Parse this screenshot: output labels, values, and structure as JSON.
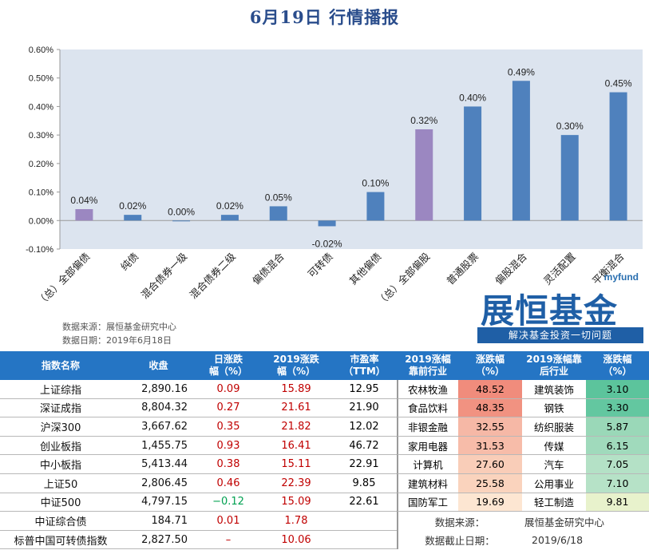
{
  "title": "6月19日  行情播报",
  "chart_data": {
    "type": "bar",
    "categories": [
      "（总）全部偏债",
      "纯债",
      "混合债券一级",
      "混合债券二级",
      "偏债混合",
      "可转债",
      "其他偏债",
      "（总）全部偏股",
      "普通股票",
      "偏股混合",
      "灵活配置",
      "平衡混合"
    ],
    "values": [
      0.04,
      0.02,
      0.0,
      0.02,
      0.05,
      -0.02,
      0.1,
      0.32,
      0.4,
      0.49,
      0.3,
      0.45
    ],
    "value_labels": [
      "0.04%",
      "0.02%",
      "0.00%",
      "0.02%",
      "0.05%",
      "-0.02%",
      "0.10%",
      "0.32%",
      "0.40%",
      "0.49%",
      "0.30%",
      "0.45%"
    ],
    "highlight": [
      true,
      false,
      false,
      false,
      false,
      false,
      false,
      true,
      false,
      false,
      false,
      false
    ],
    "yticks": [
      -0.1,
      0.0,
      0.1,
      0.2,
      0.3,
      0.4,
      0.5,
      0.6
    ],
    "ytick_labels": [
      "-0.10%",
      "0.00%",
      "0.10%",
      "0.20%",
      "0.30%",
      "0.40%",
      "0.50%",
      "0.60%"
    ],
    "ylim": [
      -0.1,
      0.6
    ],
    "colors": {
      "bar": "#4f81bd",
      "highlight": "#9b87c1",
      "plot_bg": "#dce4ef",
      "axis": "#999999"
    },
    "grid": false
  },
  "source": {
    "line1": "数据来源：展恒基金研究中心",
    "line2": "数据日期：2019年6月18日"
  },
  "logo": {
    "my": "myfund",
    "name": "展恒基金",
    "tagline": "解决基金投资一切问题"
  },
  "index_table": {
    "headers": [
      "指数名称",
      "收盘",
      "日涨跌\n幅（%）",
      "2019涨跌\n幅（%）",
      "市盈率\n（TTM）"
    ],
    "rows": [
      {
        "name": "上证综指",
        "close": "2,890.16",
        "day": "0.09",
        "ytd": "15.89",
        "pe": "12.95"
      },
      {
        "name": "深证成指",
        "close": "8,804.32",
        "day": "0.27",
        "ytd": "21.61",
        "pe": "21.90"
      },
      {
        "name": "沪深300",
        "close": "3,667.62",
        "day": "0.35",
        "ytd": "21.82",
        "pe": "12.02"
      },
      {
        "name": "创业板指",
        "close": "1,455.75",
        "day": "0.93",
        "ytd": "16.41",
        "pe": "46.72"
      },
      {
        "name": "中小板指",
        "close": "5,413.44",
        "day": "0.38",
        "ytd": "15.11",
        "pe": "22.91"
      },
      {
        "name": "上证50",
        "close": "2,806.45",
        "day": "0.46",
        "ytd": "22.39",
        "pe": "9.85"
      },
      {
        "name": "中证500",
        "close": "4,797.15",
        "day": "−0.12",
        "ytd": "15.09",
        "pe": "22.61"
      },
      {
        "name": "中证综合债",
        "close": "184.71",
        "day": "0.01",
        "ytd": "1.78",
        "pe": ""
      },
      {
        "name": "标普中国可转债指数",
        "close": "2,827.50",
        "day": "–",
        "ytd": "10.06",
        "pe": ""
      }
    ]
  },
  "industry_table": {
    "headers": [
      "2019涨幅\n靠前行业",
      "涨跌幅\n（%）",
      "2019涨幅靠\n后行业",
      "涨跌幅\n（%）"
    ],
    "rows": [
      {
        "top": "农林牧渔",
        "top_chg": "48.52",
        "bottom": "建筑装饰",
        "bottom_chg": "3.10"
      },
      {
        "top": "食品饮料",
        "top_chg": "48.35",
        "bottom": "钢铁",
        "bottom_chg": "3.30"
      },
      {
        "top": "非银金融",
        "top_chg": "32.55",
        "bottom": "纺织服装",
        "bottom_chg": "5.87"
      },
      {
        "top": "家用电器",
        "top_chg": "31.53",
        "bottom": "传媒",
        "bottom_chg": "6.15"
      },
      {
        "top": "计算机",
        "top_chg": "27.60",
        "bottom": "汽车",
        "bottom_chg": "7.05"
      },
      {
        "top": "建筑材料",
        "top_chg": "25.58",
        "bottom": "公用事业",
        "bottom_chg": "7.10"
      },
      {
        "top": "国防军工",
        "top_chg": "19.69",
        "bottom": "轻工制造",
        "bottom_chg": "9.81"
      }
    ],
    "top_colors": [
      "#f08c7c",
      "#f19281",
      "#f6b8a6",
      "#f7bca9",
      "#f9cdb8",
      "#fad3bd",
      "#fde6d2"
    ],
    "bottom_colors": [
      "#5cc49c",
      "#63c7a0",
      "#9ad8b8",
      "#a0dabc",
      "#b4e1c6",
      "#b6e2c7",
      "#e8f2cc"
    ],
    "source_label": "数据来源：",
    "source_value": "展恒基金研究中心",
    "date_label": "数据截止日期：",
    "date_value": "2019/6/18"
  }
}
